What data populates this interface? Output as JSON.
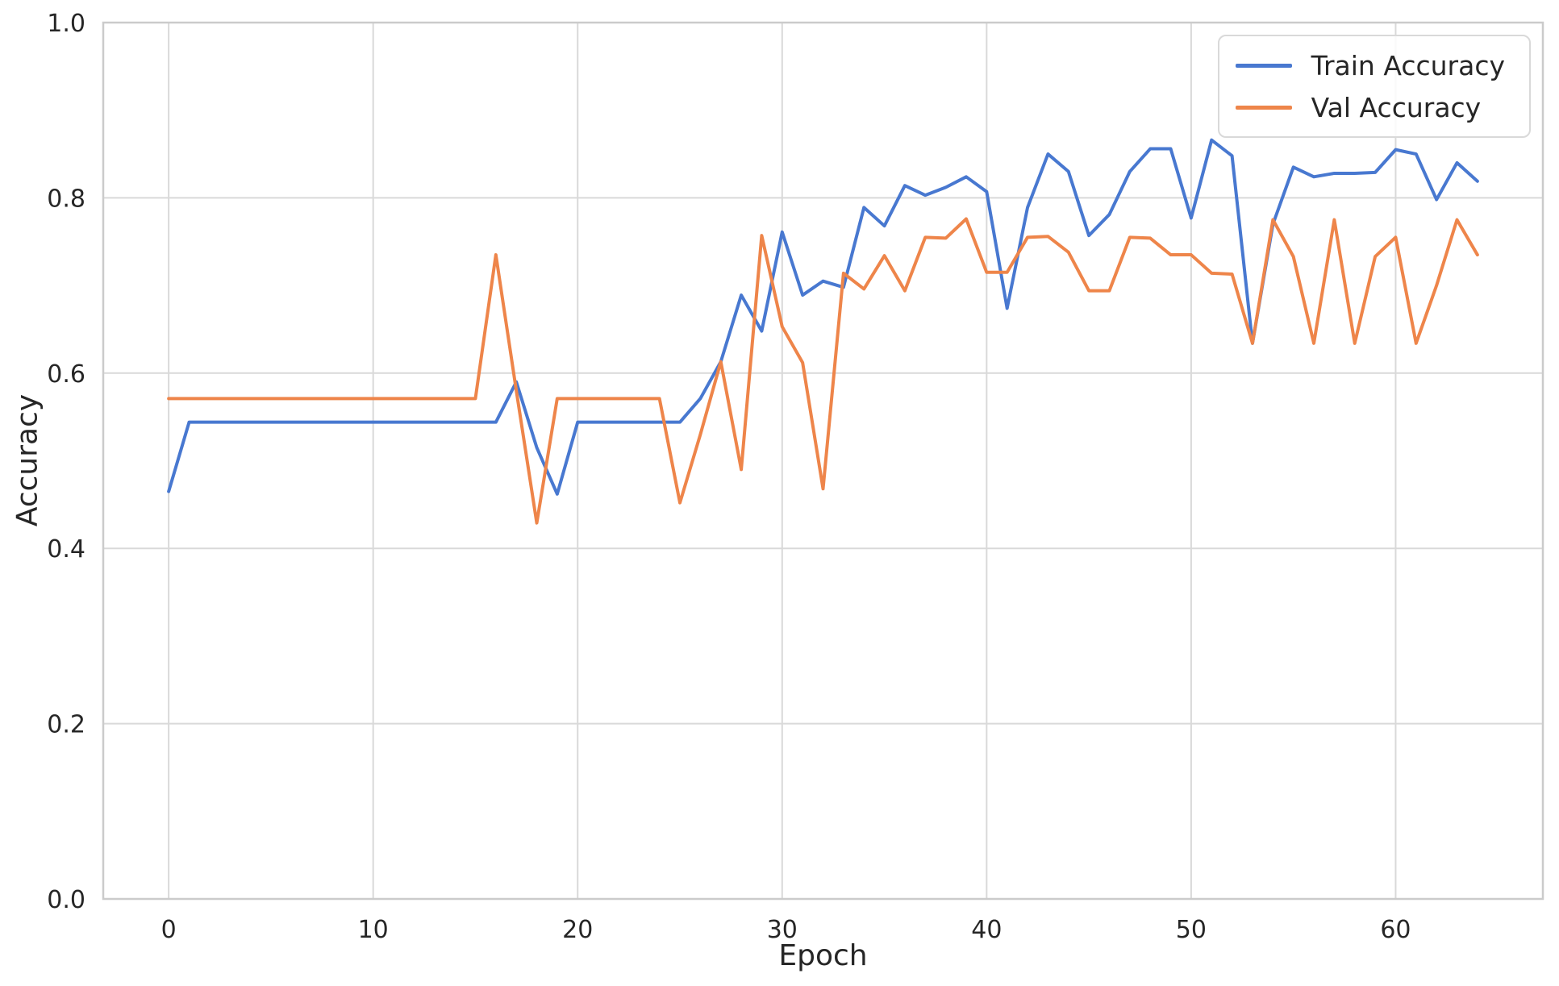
{
  "chart_data": {
    "type": "line",
    "title": "",
    "xlabel": "Epoch",
    "ylabel": "Accuracy",
    "xlim": [
      -3.2,
      67.2
    ],
    "ylim": [
      0.0,
      1.0
    ],
    "grid": true,
    "legend_position": "upper right",
    "x_ticks": [
      0,
      10,
      20,
      30,
      40,
      50,
      60
    ],
    "x_tick_labels": [
      "0",
      "10",
      "20",
      "30",
      "40",
      "50",
      "60"
    ],
    "y_ticks": [
      0.0,
      0.2,
      0.4,
      0.6,
      0.8,
      1.0
    ],
    "y_tick_labels": [
      "0.0",
      "0.2",
      "0.4",
      "0.6",
      "0.8",
      "1.0"
    ],
    "x": [
      0,
      1,
      2,
      3,
      4,
      5,
      6,
      7,
      8,
      9,
      10,
      11,
      12,
      13,
      14,
      15,
      16,
      17,
      18,
      19,
      20,
      21,
      22,
      23,
      24,
      25,
      26,
      27,
      28,
      29,
      30,
      31,
      32,
      33,
      34,
      35,
      36,
      37,
      38,
      39,
      40,
      41,
      42,
      43,
      44,
      45,
      46,
      47,
      48,
      49,
      50,
      51,
      52,
      53,
      54,
      55,
      56,
      57,
      58,
      59,
      60,
      61,
      62,
      63,
      64
    ],
    "series": [
      {
        "name": "Train Accuracy",
        "color": "#4878d0",
        "values": [
          0.465,
          0.544,
          0.544,
          0.544,
          0.544,
          0.544,
          0.544,
          0.544,
          0.544,
          0.544,
          0.544,
          0.544,
          0.544,
          0.544,
          0.544,
          0.544,
          0.544,
          0.59,
          0.515,
          0.462,
          0.544,
          0.544,
          0.544,
          0.544,
          0.544,
          0.544,
          0.571,
          0.613,
          0.689,
          0.648,
          0.761,
          0.689,
          0.705,
          0.698,
          0.789,
          0.768,
          0.814,
          0.803,
          0.812,
          0.824,
          0.807,
          0.674,
          0.789,
          0.85,
          0.83,
          0.757,
          0.781,
          0.83,
          0.856,
          0.856,
          0.777,
          0.866,
          0.848,
          0.634,
          0.77,
          0.835,
          0.824,
          0.828,
          0.828,
          0.829,
          0.855,
          0.85,
          0.798,
          0.84,
          0.819
        ]
      },
      {
        "name": "Val Accuracy",
        "color": "#ee854a",
        "values": [
          0.571,
          0.571,
          0.571,
          0.571,
          0.571,
          0.571,
          0.571,
          0.571,
          0.571,
          0.571,
          0.571,
          0.571,
          0.571,
          0.571,
          0.571,
          0.571,
          0.735,
          0.58,
          0.429,
          0.571,
          0.571,
          0.571,
          0.571,
          0.571,
          0.571,
          0.452,
          0.53,
          0.613,
          0.49,
          0.757,
          0.653,
          0.612,
          0.468,
          0.714,
          0.696,
          0.734,
          0.694,
          0.755,
          0.754,
          0.776,
          0.715,
          0.715,
          0.755,
          0.756,
          0.738,
          0.694,
          0.694,
          0.755,
          0.754,
          0.735,
          0.735,
          0.714,
          0.713,
          0.634,
          0.775,
          0.733,
          0.634,
          0.775,
          0.634,
          0.733,
          0.755,
          0.634,
          0.7,
          0.775,
          0.735
        ]
      }
    ]
  },
  "legend": {
    "items": [
      {
        "label": "Train Accuracy"
      },
      {
        "label": "Val Accuracy"
      }
    ]
  }
}
